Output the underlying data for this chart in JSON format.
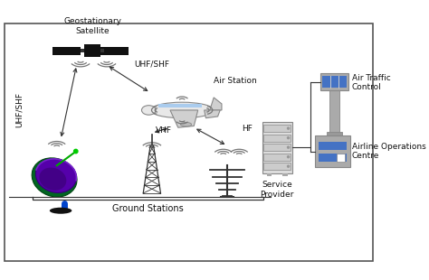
{
  "bg_color": "#ffffff",
  "labels": {
    "geosat": "Geostationary\nSatellite",
    "air_station": "Air Station",
    "uhf_shf_diag": "UHF/SHF",
    "uhf_shf_vert": "UHF/SHF",
    "vhf": "VHF",
    "hf": "HF",
    "ground_stations": "Ground Stations",
    "service_provider": "Service\nProvider",
    "air_traffic": "Air Traffic\nControl",
    "airline_ops": "Airline Operations\nCentre"
  },
  "colors": {
    "black": "#111111",
    "dark": "#333333",
    "mid": "#666666",
    "light": "#999999",
    "lighter": "#bbbbbb",
    "dish_purple": "#5500aa",
    "dish_green": "#006600",
    "dish_blue": "#0044cc",
    "dish_dark": "#220055",
    "atc_blue": "#4472c4",
    "aoc_blue": "#4472c4",
    "wave": "#777777",
    "arrow": "#333333",
    "text": "#111111",
    "border": "#333333"
  },
  "figsize": [
    4.74,
    3.1
  ],
  "dpi": 100
}
